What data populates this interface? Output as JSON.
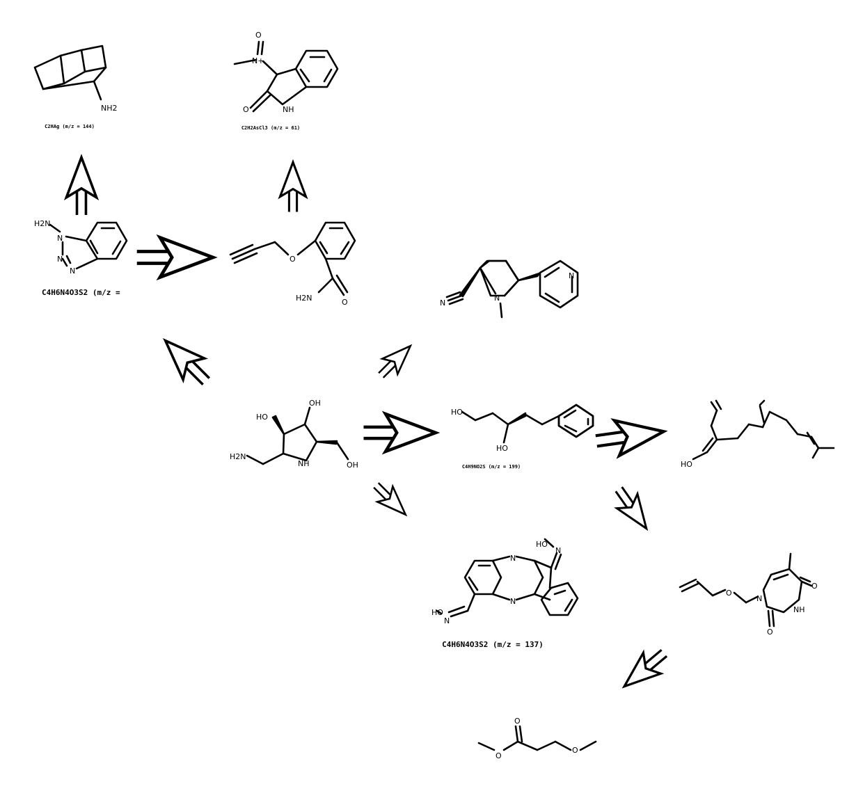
{
  "scheme": {
    "molecules": [
      {
        "id": "cubane-amine",
        "atom_labels": [
          "NH2"
        ],
        "caption": "C2HAg (m/z = 144)"
      },
      {
        "id": "indolinone-nitroso",
        "atom_labels": [
          "O",
          "N+",
          "O",
          "NH"
        ],
        "caption": "C2H2AsCl3 (m/z = 61)"
      },
      {
        "id": "aminobenzotriazole",
        "atom_labels": [
          "H2N",
          "N",
          "N",
          "N"
        ],
        "caption": "C4H6N4O3S2 (m/z ="
      },
      {
        "id": "propargyloxy-benzamide",
        "atom_labels": [
          "O",
          "H2N",
          "O"
        ],
        "caption": ""
      },
      {
        "id": "pyridyl-pyrrolidine-nitrile",
        "atom_labels": [
          "N",
          "N",
          "N"
        ],
        "caption": ""
      },
      {
        "id": "aminomethyl-pyrrolidine-diol",
        "atom_labels": [
          "HO",
          "OH",
          "H2N",
          "NH",
          "OH"
        ],
        "caption": ""
      },
      {
        "id": "phenyl-pentanediol",
        "atom_labels": [
          "HO",
          "HO"
        ],
        "caption": "C4H9NO2S (m/z = 199)"
      },
      {
        "id": "farnesol-like",
        "atom_labels": [
          "HO"
        ],
        "caption": ""
      },
      {
        "id": "indenoquinoxaline-dioxime",
        "atom_labels": [
          "HO",
          "N",
          "N",
          "N",
          "HO",
          "N"
        ],
        "caption": "C4H6N4O3S2 (m/z = 137)"
      },
      {
        "id": "allyloxymethyl-thymine",
        "atom_labels": [
          "O",
          "N",
          "O",
          "NH",
          "O"
        ],
        "caption": ""
      },
      {
        "id": "methyl-methoxybutanoate",
        "atom_labels": [
          "O",
          "O",
          "O"
        ],
        "caption": ""
      }
    ],
    "arrows": [
      {
        "from": "aminobenzotriazole",
        "to": "cubane-amine",
        "direction": "up"
      },
      {
        "from": "propargyloxy-benzamide",
        "to": "indolinone-nitroso",
        "direction": "up"
      },
      {
        "from": "aminobenzotriazole",
        "to": "propargyloxy-benzamide",
        "direction": "right"
      },
      {
        "from": "aminomethyl-pyrrolidine-diol",
        "to": "aminobenzotriazole",
        "direction": "up-left"
      },
      {
        "from": "aminomethyl-pyrrolidine-diol",
        "to": "pyridyl-pyrrolidine-nitrile",
        "direction": "up-right"
      },
      {
        "from": "aminomethyl-pyrrolidine-diol",
        "to": "phenyl-pentanediol",
        "direction": "right"
      },
      {
        "from": "aminomethyl-pyrrolidine-diol",
        "to": "indenoquinoxaline-dioxime",
        "direction": "down-right"
      },
      {
        "from": "phenyl-pentanediol",
        "to": "farnesol-like",
        "direction": "right"
      },
      {
        "from": "phenyl-pentanediol",
        "to": "allyloxymethyl-thymine",
        "direction": "down-right"
      },
      {
        "from": "allyloxymethyl-thymine",
        "to": "methyl-methoxybutanoate",
        "direction": "down-left"
      }
    ]
  }
}
